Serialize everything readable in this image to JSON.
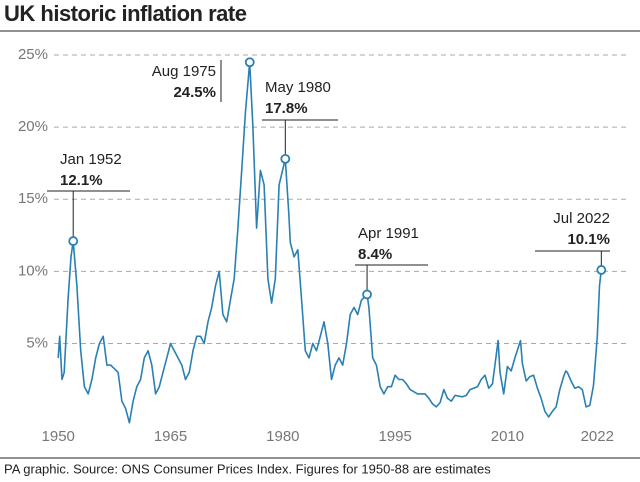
{
  "chart_data": {
    "type": "line",
    "title": "UK historic inflation rate",
    "source": "PA graphic. Source: ONS Consumer Prices Index. Figures for 1950-88 are estimates",
    "xlim": [
      1948.5,
      2024.5
    ],
    "xticks": [
      1950,
      1965,
      1980,
      1995,
      2010,
      2022
    ],
    "ylim": [
      -1,
      26
    ],
    "yticks": [
      {
        "value": 5,
        "label": "5%"
      },
      {
        "value": 10,
        "label": "10%"
      },
      {
        "value": 15,
        "label": "15%"
      },
      {
        "value": 20,
        "label": "20%"
      },
      {
        "value": 25,
        "label": "25%"
      }
    ],
    "grid": true,
    "series": [
      {
        "color": "#2a80b2",
        "x": [
          1950.0,
          1950.2,
          1950.5,
          1950.8,
          1951.3,
          1951.7,
          1952.0,
          1952.5,
          1953,
          1953.5,
          1954,
          1954.5,
          1955,
          1955.5,
          1956,
          1956.5,
          1957,
          1958,
          1958.5,
          1959,
          1959.5,
          1960,
          1960.5,
          1961,
          1961.5,
          1962,
          1962.5,
          1963,
          1963.5,
          1964,
          1964.5,
          1965,
          1965.5,
          1966,
          1966.5,
          1967,
          1967.5,
          1968,
          1968.5,
          1969,
          1969.5,
          1970,
          1970.5,
          1971,
          1971.5,
          1972,
          1972.5,
          1973,
          1973.5,
          1974,
          1974.5,
          1975,
          1975.58,
          1976,
          1976.5,
          1977,
          1977.5,
          1978,
          1978.5,
          1979,
          1979.5,
          1980.33,
          1980.8,
          1981,
          1981.5,
          1982,
          1982.5,
          1983,
          1983.5,
          1984,
          1984.5,
          1985,
          1985.5,
          1986,
          1986.5,
          1987,
          1987.5,
          1988,
          1988.5,
          1989,
          1989.5,
          1990,
          1990.5,
          1991.25,
          1991.5,
          1992,
          1992.5,
          1993,
          1993.5,
          1994,
          1994.5,
          1995,
          1995.5,
          1996,
          1996.5,
          1997,
          1998,
          1999,
          1999.5,
          2000,
          2000.5,
          2001,
          2001.5,
          2002,
          2002.5,
          2003,
          2004,
          2004.5,
          2005,
          2006,
          2006.5,
          2007,
          2007.5,
          2008,
          2008.75,
          2009,
          2009.5,
          2010,
          2010.5,
          2011,
          2011.75,
          2012,
          2012.5,
          2013,
          2013.5,
          2014,
          2014.5,
          2015,
          2015.5,
          2016,
          2016.5,
          2017,
          2017.5,
          2017.8,
          2018,
          2018.5,
          2019,
          2019.5,
          2020,
          2020.5,
          2021,
          2021.5,
          2022,
          2022.3,
          2022.54
        ],
        "values": [
          4.0,
          5.5,
          2.5,
          3.0,
          8.0,
          11.0,
          12.1,
          9.0,
          4.5,
          2.0,
          1.5,
          2.5,
          4.0,
          5.0,
          5.5,
          3.5,
          3.5,
          3.0,
          1.0,
          0.5,
          -0.5,
          1.0,
          2.0,
          2.5,
          4.0,
          4.5,
          3.5,
          1.5,
          2.0,
          3.0,
          4.0,
          5.0,
          4.5,
          4.0,
          3.5,
          2.5,
          3.0,
          4.5,
          5.5,
          5.5,
          5.0,
          6.5,
          7.5,
          9.0,
          10.0,
          7.0,
          6.5,
          8.0,
          9.5,
          13.0,
          17.0,
          21.0,
          24.5,
          20.0,
          13.0,
          17.0,
          16.0,
          9.5,
          7.8,
          9.5,
          16.0,
          17.8,
          14.0,
          12.0,
          11.0,
          11.5,
          8.0,
          4.5,
          4.0,
          5.0,
          4.5,
          5.5,
          6.5,
          5.0,
          2.5,
          3.5,
          4.0,
          3.5,
          5.0,
          7.0,
          7.5,
          7.0,
          8.0,
          8.4,
          7.5,
          4.0,
          3.5,
          2.0,
          1.5,
          2.0,
          2.0,
          2.8,
          2.5,
          2.5,
          2.2,
          1.8,
          1.5,
          1.5,
          1.2,
          0.8,
          0.6,
          0.9,
          1.8,
          1.2,
          1.0,
          1.4,
          1.3,
          1.4,
          1.8,
          2.0,
          2.5,
          2.8,
          1.9,
          2.2,
          5.2,
          3.0,
          1.5,
          3.4,
          3.1,
          4.0,
          5.2,
          3.6,
          2.4,
          2.7,
          2.8,
          1.9,
          1.2,
          0.3,
          -0.1,
          0.3,
          0.6,
          1.8,
          2.7,
          3.1,
          3.0,
          2.4,
          1.9,
          2.0,
          1.8,
          0.6,
          0.7,
          2.1,
          5.5,
          9.0,
          10.1
        ]
      }
    ],
    "annotations": [
      {
        "x": 1952.0,
        "y": 12.1,
        "date": "Jan 1952",
        "value_label": "12.1%"
      },
      {
        "x": 1975.58,
        "y": 24.5,
        "date": "Aug 1975",
        "value_label": "24.5%"
      },
      {
        "x": 1980.33,
        "y": 17.8,
        "date": "May 1980",
        "value_label": "17.8%"
      },
      {
        "x": 1991.25,
        "y": 8.4,
        "date": "Apr 1991",
        "value_label": "8.4%"
      },
      {
        "x": 2022.54,
        "y": 10.1,
        "date": "Jul 2022",
        "value_label": "10.1%"
      }
    ]
  }
}
